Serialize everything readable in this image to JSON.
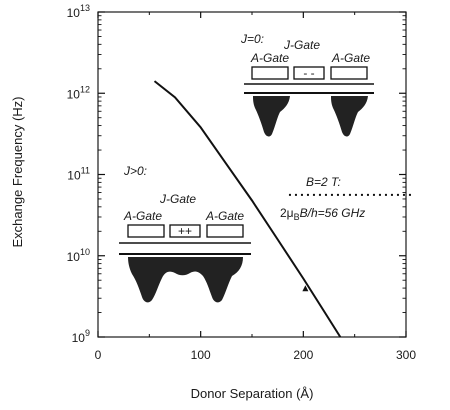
{
  "chart_data": {
    "type": "line",
    "xlabel": "Donor Separation (Å)",
    "ylabel": "Exchange Frequency (Hz)",
    "xlim": [
      0,
      300
    ],
    "ylim_log10": [
      9,
      13
    ],
    "y_scale": "log",
    "x_ticks": [
      {
        "value": 0,
        "label": "0"
      },
      {
        "value": 100,
        "label": "100"
      },
      {
        "value": 200,
        "label": "200"
      },
      {
        "value": 300,
        "label": "300"
      }
    ],
    "y_ticks": [
      {
        "value": 9,
        "base": "10",
        "exp": "9"
      },
      {
        "value": 10,
        "base": "10",
        "exp": "10"
      },
      {
        "value": 11,
        "base": "10",
        "exp": "11"
      },
      {
        "value": 12,
        "base": "10",
        "exp": "12"
      },
      {
        "value": 13,
        "base": "10",
        "exp": "13"
      }
    ],
    "series": [
      {
        "x": [
          55,
          75,
          100,
          125,
          150,
          175,
          200,
          220,
          236
        ],
        "log10_y": [
          12.15,
          11.95,
          11.58,
          11.13,
          10.68,
          10.2,
          9.72,
          9.32,
          9.0
        ]
      }
    ],
    "reference_line": {
      "log10_y": 10.75,
      "x_start": 186,
      "x_end": 305,
      "style": "dotted"
    },
    "marker": {
      "x": 202,
      "log10_y": 9.6
    },
    "grid": false
  },
  "annotations": {
    "field_b": "B=2 T:",
    "field_freq": "2μ",
    "field_freq_sub": "B",
    "field_freq_tail": "B/h=56 GHz",
    "j_zero": "J=0:",
    "j_pos": "J>0:",
    "j_gate": "J-Gate",
    "a_gate": "A-Gate",
    "minus_signs": "- -",
    "plus_signs": "++"
  }
}
